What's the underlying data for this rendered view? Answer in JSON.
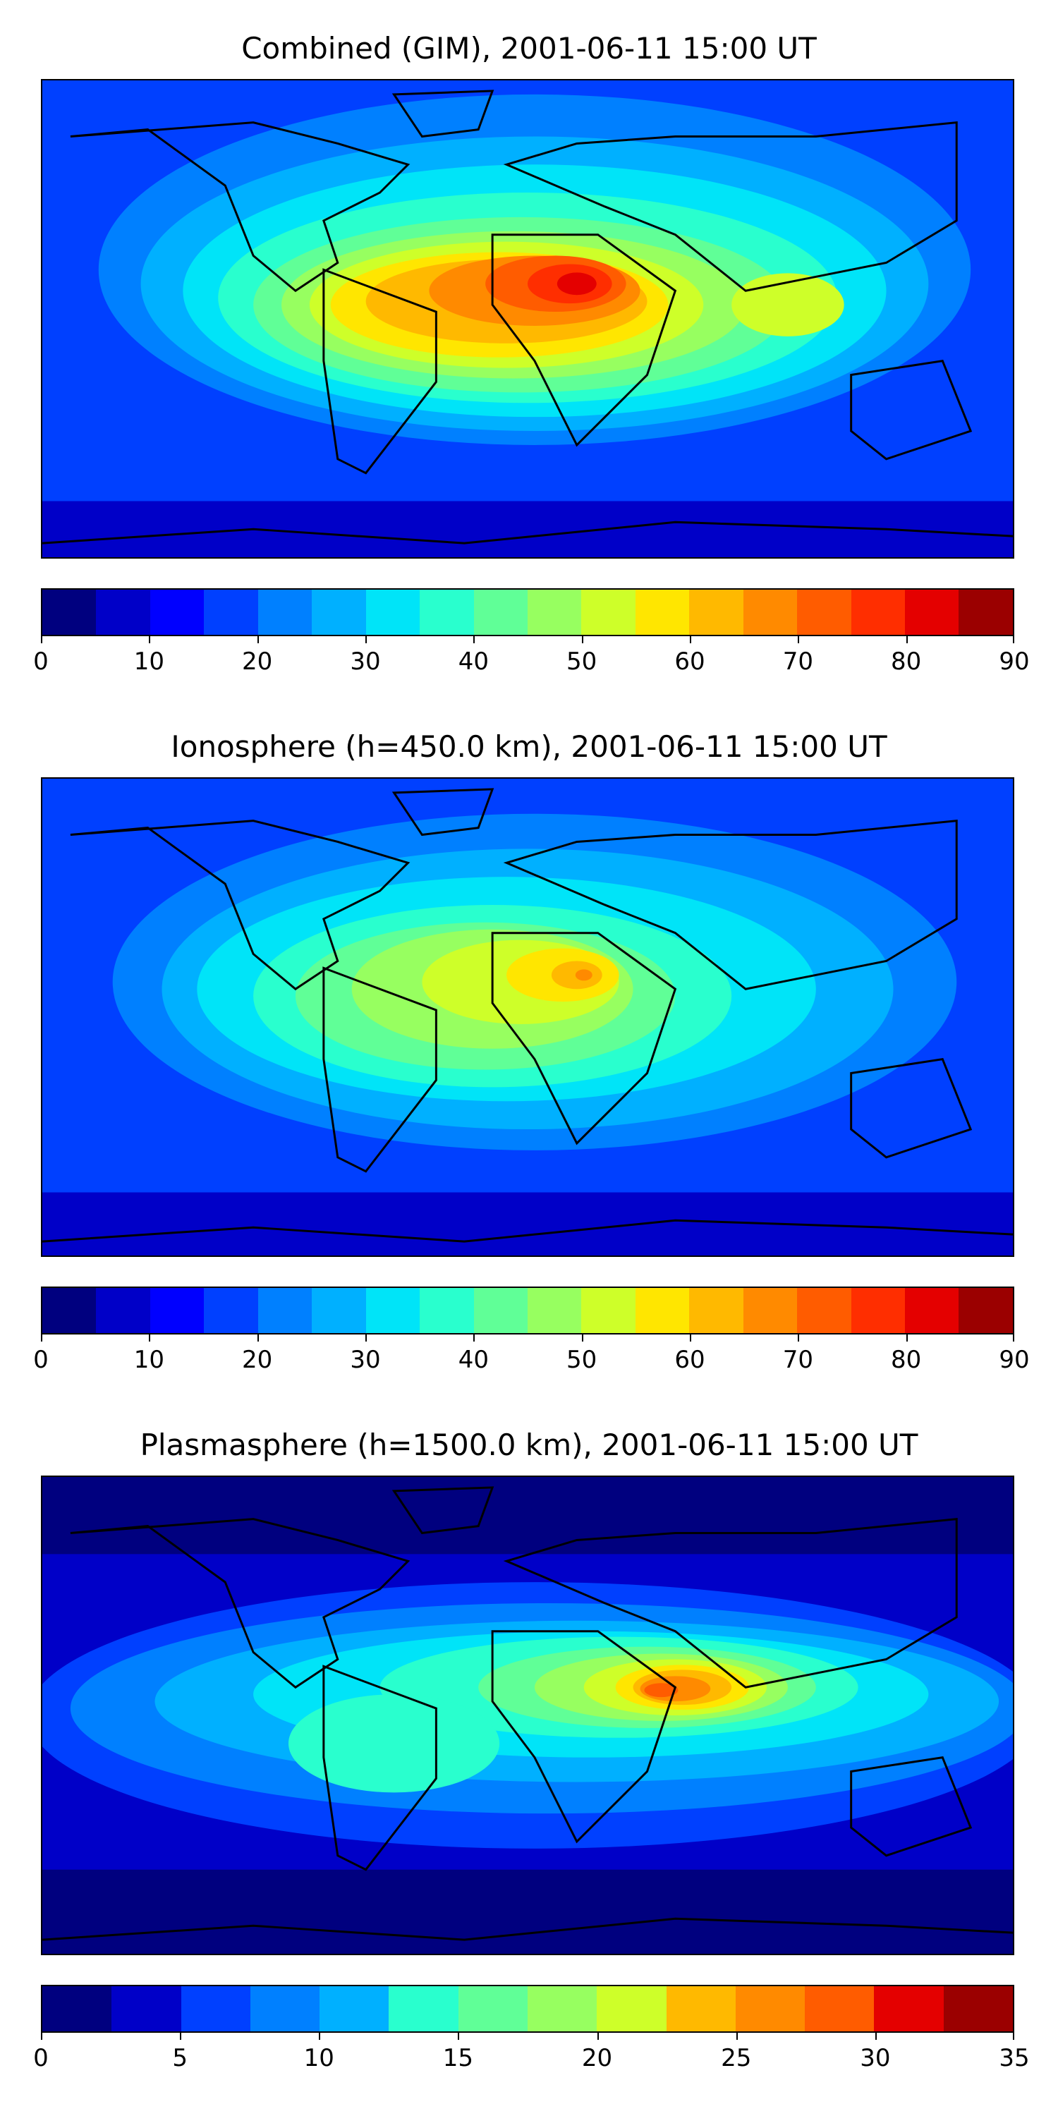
{
  "colormap": [
    "#00007f",
    "#0000c8",
    "#0000ff",
    "#0040ff",
    "#0080ff",
    "#00b0ff",
    "#00e4f8",
    "#29ffce",
    "#60ff97",
    "#97ff60",
    "#ceff29",
    "#ffe600",
    "#ffb900",
    "#ff8a00",
    "#ff5c00",
    "#ff2e00",
    "#e40000",
    "#9b0000"
  ],
  "panels": [
    {
      "title": "Combined (GIM), 2001-06-11 15:00 UT",
      "colorbar": {
        "min": 0,
        "max": 90,
        "step": 5,
        "ticks": [
          "0",
          "10",
          "20",
          "30",
          "40",
          "50",
          "60",
          "70",
          "80",
          "90"
        ]
      },
      "peak_value": 87,
      "background_value": 15
    },
    {
      "title": "Ionosphere  (h=450.0 km), 2001-06-11 15:00 UT",
      "colorbar": {
        "min": 0,
        "max": 90,
        "step": 5,
        "ticks": [
          "0",
          "10",
          "20",
          "30",
          "40",
          "50",
          "60",
          "70",
          "80",
          "90"
        ]
      },
      "peak_value": 66,
      "background_value": 15
    },
    {
      "title": "Plasmasphere (h=1500.0 km), 2001-06-11 15:00 UT",
      "colorbar": {
        "min": 0,
        "max": 35,
        "step": 2.5,
        "ticks": [
          "0",
          "5",
          "10",
          "15",
          "20",
          "25",
          "30",
          "35"
        ]
      },
      "peak_value": 31,
      "background_value": 2
    }
  ]
}
